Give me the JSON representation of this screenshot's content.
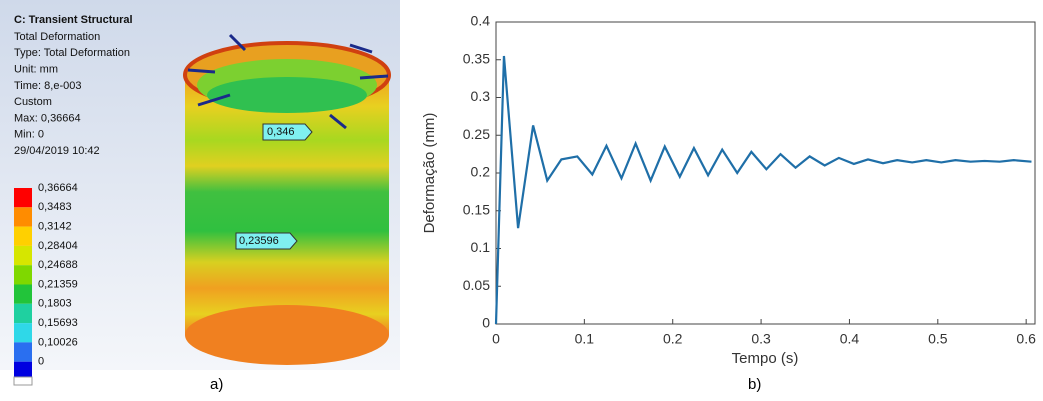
{
  "ansys": {
    "title": "C: Transient Structural",
    "info": [
      "Total Deformation",
      "Type: Total Deformation",
      "Unit: mm",
      "Time: 8,e-003",
      "Custom",
      "Max: 0,36664",
      "Min: 0",
      "29/04/2019 10:42"
    ],
    "legend": {
      "labels": [
        "0,36664",
        "0,3483",
        "0,3142",
        "0,28404",
        "0,24688",
        "0,21359",
        "0,1803",
        "0,15693",
        "0,10026",
        "0"
      ],
      "colors": [
        "#ff0000",
        "#ff8c00",
        "#ffd000",
        "#d6e600",
        "#7fd800",
        "#22c43a",
        "#1fd0a0",
        "#2fd8e8",
        "#2a6ff0",
        "#0000e0"
      ]
    },
    "probes": [
      "0,346",
      "0,23596"
    ],
    "caption": "a)"
  },
  "chart_data": {
    "type": "line",
    "caption": "b)",
    "xlabel": "Tempo (s)",
    "ylabel": "Deformação (mm)",
    "x": [
      0,
      0.009,
      0.025,
      0.042,
      0.058,
      0.074,
      0.092,
      0.109,
      0.125,
      0.142,
      0.158,
      0.175,
      0.191,
      0.208,
      0.224,
      0.24,
      0.256,
      0.273,
      0.289,
      0.306,
      0.322,
      0.339,
      0.355,
      0.372,
      0.388,
      0.405,
      0.421,
      0.438,
      0.454,
      0.471,
      0.487,
      0.504,
      0.52,
      0.537,
      0.553,
      0.57,
      0.586,
      0.606
    ],
    "values": [
      0,
      0.355,
      0.127,
      0.263,
      0.19,
      0.218,
      0.222,
      0.198,
      0.236,
      0.193,
      0.239,
      0.19,
      0.235,
      0.195,
      0.233,
      0.197,
      0.231,
      0.2,
      0.228,
      0.205,
      0.225,
      0.207,
      0.222,
      0.21,
      0.22,
      0.212,
      0.218,
      0.213,
      0.217,
      0.214,
      0.217,
      0.214,
      0.217,
      0.215,
      0.216,
      0.215,
      0.217,
      0.215
    ],
    "color": "#1f6fa8",
    "xlim": [
      0,
      0.61
    ],
    "ylim": [
      0,
      0.4
    ],
    "xticks": [
      0,
      0.1,
      0.2,
      0.3,
      0.4,
      0.5,
      0.6
    ],
    "yticks": [
      0,
      0.05,
      0.1,
      0.15,
      0.2,
      0.25,
      0.3,
      0.35,
      0.4
    ]
  }
}
